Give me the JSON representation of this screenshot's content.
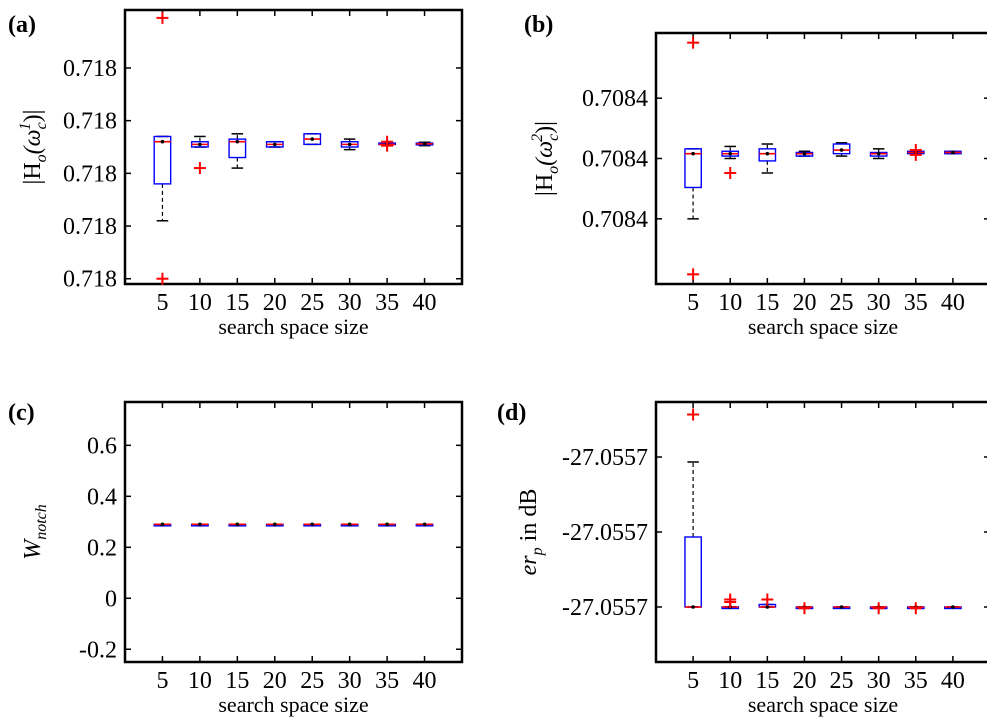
{
  "chart_data": [
    {
      "panel": "(a)",
      "type": "box",
      "xlabel": "search space size",
      "ylabel_base": "|H",
      "ylabel_sub": "o",
      "ylabel_arg": "(ω",
      "ylabel_argsub": "c",
      "ylabel_sup": "1",
      "ylabel_end": ")|",
      "categories": [
        "5",
        "10",
        "15",
        "20",
        "25",
        "30",
        "35",
        "40"
      ],
      "yticks": [
        {
          "label": "0.718",
          "v": 0.0
        },
        {
          "label": "0.718",
          "v": 0.2
        },
        {
          "label": "0.718",
          "v": 0.4
        },
        {
          "label": "0.718",
          "v": 0.6
        },
        {
          "label": "0.718",
          "v": 0.8
        }
      ],
      "ylim": [
        -0.02,
        1.02
      ],
      "boxes": [
        {
          "q1": 0.36,
          "median": 0.52,
          "q3": 0.54,
          "wlo": 0.22,
          "whi": 0.54,
          "out": [
            0.0,
            0.99
          ]
        },
        {
          "q1": 0.5,
          "median": 0.51,
          "q3": 0.52,
          "wlo": 0.5,
          "whi": 0.54,
          "out": [
            0.42
          ]
        },
        {
          "q1": 0.46,
          "median": 0.52,
          "q3": 0.53,
          "wlo": 0.42,
          "whi": 0.55,
          "out": []
        },
        {
          "q1": 0.5,
          "median": 0.51,
          "q3": 0.52,
          "wlo": 0.5,
          "whi": 0.52,
          "out": []
        },
        {
          "q1": 0.51,
          "median": 0.53,
          "q3": 0.55,
          "wlo": 0.51,
          "whi": 0.55,
          "out": []
        },
        {
          "q1": 0.5,
          "median": 0.51,
          "q3": 0.52,
          "wlo": 0.49,
          "whi": 0.53,
          "out": []
        },
        {
          "q1": 0.51,
          "median": 0.51,
          "q3": 0.515,
          "wlo": 0.51,
          "whi": 0.515,
          "out": [
            0.505,
            0.52
          ]
        },
        {
          "q1": 0.508,
          "median": 0.512,
          "q3": 0.515,
          "wlo": 0.505,
          "whi": 0.518,
          "out": []
        }
      ]
    },
    {
      "panel": "(b)",
      "type": "box",
      "xlabel": "search space size",
      "ylabel_base": "|H",
      "ylabel_sub": "o",
      "ylabel_arg": "(ω",
      "ylabel_argsub": "c",
      "ylabel_sup": "2",
      "ylabel_end": ")|",
      "categories": [
        "5",
        "10",
        "15",
        "20",
        "25",
        "30",
        "35",
        "40"
      ],
      "yticks": [
        {
          "label": "0.7084",
          "v": 0.25
        },
        {
          "label": "0.7084",
          "v": 0.5
        },
        {
          "label": "0.7084",
          "v": 0.75
        }
      ],
      "ylim": [
        -0.02,
        1.02
      ],
      "boxes": [
        {
          "q1": 0.38,
          "median": 0.52,
          "q3": 0.54,
          "wlo": 0.25,
          "whi": 0.54,
          "out": [
            0.02,
            0.98
          ]
        },
        {
          "q1": 0.51,
          "median": 0.52,
          "q3": 0.53,
          "wlo": 0.5,
          "whi": 0.55,
          "out": [
            0.44
          ]
        },
        {
          "q1": 0.49,
          "median": 0.52,
          "q3": 0.54,
          "wlo": 0.44,
          "whi": 0.56,
          "out": []
        },
        {
          "q1": 0.51,
          "median": 0.52,
          "q3": 0.525,
          "wlo": 0.51,
          "whi": 0.53,
          "out": []
        },
        {
          "q1": 0.52,
          "median": 0.535,
          "q3": 0.56,
          "wlo": 0.51,
          "whi": 0.565,
          "out": []
        },
        {
          "q1": 0.51,
          "median": 0.52,
          "q3": 0.525,
          "wlo": 0.5,
          "whi": 0.54,
          "out": []
        },
        {
          "q1": 0.52,
          "median": 0.525,
          "q3": 0.53,
          "wlo": 0.52,
          "whi": 0.53,
          "out": [
            0.515,
            0.535
          ]
        },
        {
          "q1": 0.52,
          "median": 0.525,
          "q3": 0.53,
          "wlo": 0.52,
          "whi": 0.53,
          "out": []
        }
      ]
    },
    {
      "panel": "(c)",
      "type": "box",
      "xlabel": "search space size",
      "ylabel_base": "W",
      "ylabel_sub": "notch",
      "categories": [
        "5",
        "10",
        "15",
        "20",
        "25",
        "30",
        "35",
        "40"
      ],
      "yticks": [
        {
          "label": "-0.2",
          "v": -0.2
        },
        {
          "label": "0",
          "v": 0.0
        },
        {
          "label": "0.2",
          "v": 0.2
        },
        {
          "label": "0.4",
          "v": 0.4
        },
        {
          "label": "0.6",
          "v": 0.6
        }
      ],
      "ylim": [
        -0.25,
        0.77
      ],
      "boxes": [
        {
          "q1": 0.29,
          "median": 0.29,
          "q3": 0.29,
          "wlo": 0.29,
          "whi": 0.29,
          "out": []
        },
        {
          "q1": 0.29,
          "median": 0.29,
          "q3": 0.29,
          "wlo": 0.29,
          "whi": 0.29,
          "out": []
        },
        {
          "q1": 0.29,
          "median": 0.29,
          "q3": 0.29,
          "wlo": 0.29,
          "whi": 0.29,
          "out": []
        },
        {
          "q1": 0.29,
          "median": 0.29,
          "q3": 0.29,
          "wlo": 0.29,
          "whi": 0.29,
          "out": []
        },
        {
          "q1": 0.29,
          "median": 0.29,
          "q3": 0.29,
          "wlo": 0.29,
          "whi": 0.29,
          "out": []
        },
        {
          "q1": 0.29,
          "median": 0.29,
          "q3": 0.29,
          "wlo": 0.29,
          "whi": 0.29,
          "out": []
        },
        {
          "q1": 0.29,
          "median": 0.29,
          "q3": 0.29,
          "wlo": 0.29,
          "whi": 0.29,
          "out": []
        },
        {
          "q1": 0.29,
          "median": 0.29,
          "q3": 0.29,
          "wlo": 0.29,
          "whi": 0.29,
          "out": []
        }
      ]
    },
    {
      "panel": "(d)",
      "type": "box",
      "xlabel": "search space size",
      "ylabel_base": "er",
      "ylabel_sub": "p",
      "ylabel_end": " in dB",
      "categories": [
        "5",
        "10",
        "15",
        "20",
        "25",
        "30",
        "35",
        "40"
      ],
      "yticks": [
        {
          "label": "-27.0557",
          "v": 0.2
        },
        {
          "label": "-27.0557",
          "v": 0.5
        },
        {
          "label": "-27.0557",
          "v": 0.8
        }
      ],
      "ylim": [
        -0.02,
        1.02
      ],
      "boxes": [
        {
          "q1": 0.2,
          "median": 0.2,
          "q3": 0.48,
          "wlo": 0.2,
          "whi": 0.78,
          "out": [
            0.97
          ]
        },
        {
          "q1": 0.2,
          "median": 0.2,
          "q3": 0.2,
          "wlo": 0.2,
          "whi": 0.2,
          "out": [
            0.22,
            0.23
          ]
        },
        {
          "q1": 0.2,
          "median": 0.2,
          "q3": 0.21,
          "wlo": 0.2,
          "whi": 0.21,
          "out": [
            0.23
          ]
        },
        {
          "q1": 0.2,
          "median": 0.2,
          "q3": 0.2,
          "wlo": 0.2,
          "whi": 0.2,
          "out": [
            0.195
          ]
        },
        {
          "q1": 0.2,
          "median": 0.2,
          "q3": 0.2,
          "wlo": 0.2,
          "whi": 0.2,
          "out": []
        },
        {
          "q1": 0.2,
          "median": 0.2,
          "q3": 0.2,
          "wlo": 0.2,
          "whi": 0.2,
          "out": [
            0.195
          ]
        },
        {
          "q1": 0.2,
          "median": 0.2,
          "q3": 0.2,
          "wlo": 0.2,
          "whi": 0.2,
          "out": [
            0.195
          ]
        },
        {
          "q1": 0.2,
          "median": 0.2,
          "q3": 0.2,
          "wlo": 0.2,
          "whi": 0.2,
          "out": []
        }
      ]
    }
  ],
  "colors": {
    "box": "#0000ff",
    "median": "#ff0000",
    "outlier": "#ff0000",
    "whisker": "#000000",
    "axis": "#000000"
  }
}
